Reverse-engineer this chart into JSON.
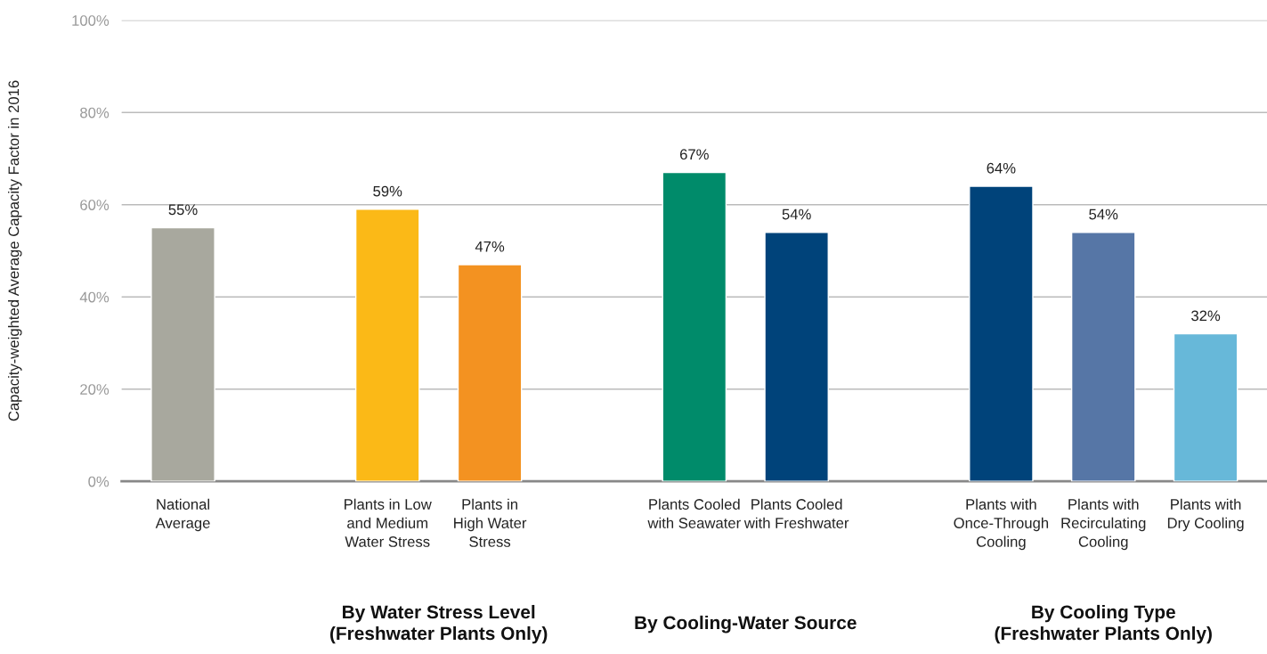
{
  "chart_data": {
    "type": "bar",
    "ylabel": "Capacity-weighted Average Capacity Factor in 2016",
    "categories": [
      "National\nAverage",
      null,
      "Plants in Low\nand Medium\nWater Stress",
      "Plants in\nHigh Water\nStress",
      null,
      "Plants Cooled\nwith Seawater",
      "Plants Cooled\nwith Freshwater",
      null,
      "Plants with\nOnce-Through\nCooling",
      "Plants with\nRecirculating\nCooling",
      "Plants with\nDry Cooling"
    ],
    "values": [
      55,
      null,
      59,
      47,
      null,
      67,
      54,
      null,
      64,
      54,
      32
    ],
    "value_labels": [
      "55%",
      null,
      "59%",
      "47%",
      null,
      "67%",
      "54%",
      null,
      "64%",
      "54%",
      "32%"
    ],
    "colors": [
      "#a8a89e",
      null,
      "#fbb917",
      "#f39221",
      null,
      "#008b6a",
      "#00437a",
      null,
      "#00437a",
      "#5676a6",
      "#67b8d9"
    ],
    "ylim": [
      0,
      100
    ],
    "yticks": [
      {
        "value": 0,
        "label": "0%"
      },
      {
        "value": 20,
        "label": "20%"
      },
      {
        "value": 40,
        "label": "40%"
      },
      {
        "value": 60,
        "label": "60%"
      },
      {
        "value": 80,
        "label": "80%"
      },
      {
        "value": 100,
        "label": "100%"
      }
    ],
    "grid": "y",
    "legend": false,
    "annotations": [
      "By Water Stress Level\n(Freshwater Plants Only)",
      "By Cooling-Water Source",
      "By Cooling Type\n(Freshwater Plants Only)"
    ]
  }
}
